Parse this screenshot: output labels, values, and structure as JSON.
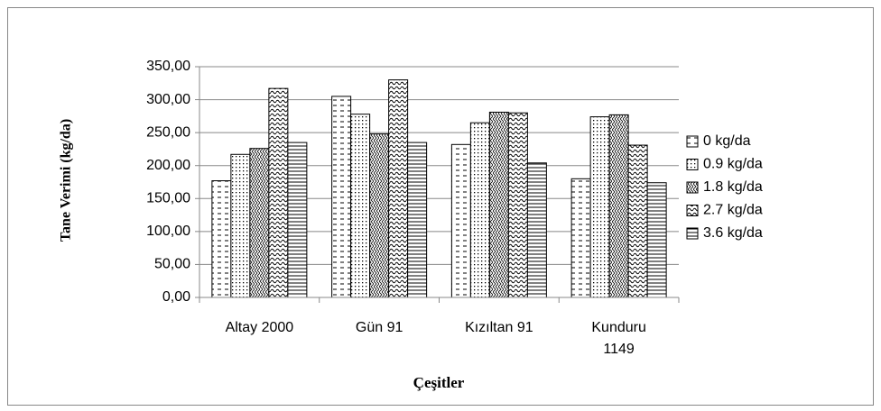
{
  "chart_data": {
    "type": "bar",
    "x_label": "Çeşitler",
    "y_label": "Tane Verimi (kg/da)",
    "categories": [
      "Altay 2000",
      "Gün 91",
      "Kızıltan 91",
      "Kunduru 1149"
    ],
    "series": [
      {
        "name": "0 kg/da",
        "values": [
          177,
          305,
          232,
          180
        ]
      },
      {
        "name": "0.9 kg/da",
        "values": [
          217,
          278,
          265,
          274
        ]
      },
      {
        "name": "1.8 kg/da",
        "values": [
          226,
          248,
          281,
          277
        ]
      },
      {
        "name": "2.7 kg/da",
        "values": [
          317,
          330,
          280,
          231
        ]
      },
      {
        "name": "3.6 kg/da",
        "values": [
          235,
          235,
          204,
          174
        ]
      }
    ],
    "ylim": [
      0,
      350
    ],
    "yticks": [
      {
        "value": 0,
        "label": "0,00"
      },
      {
        "value": 50,
        "label": "50,00"
      },
      {
        "value": 100,
        "label": "100,00"
      },
      {
        "value": 150,
        "label": "150,00"
      },
      {
        "value": 200,
        "label": "200,00"
      },
      {
        "value": 250,
        "label": "250,00"
      },
      {
        "value": 300,
        "label": "300,00"
      },
      {
        "value": 350,
        "label": "350,00"
      }
    ],
    "grid": true,
    "legend": "right"
  }
}
